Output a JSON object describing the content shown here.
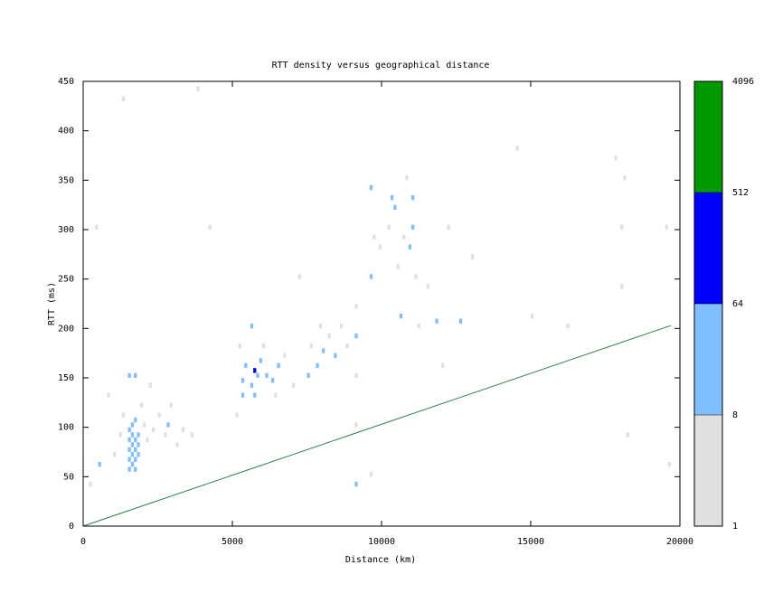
{
  "chart_data": {
    "type": "heatmap",
    "title": "RTT density versus geographical distance",
    "x_label": "Distance (km)",
    "y_label": "RTT (ms)",
    "xlim": [
      0,
      20000
    ],
    "xticks": [
      0,
      5000,
      10000,
      15000,
      20000
    ],
    "ylim": [
      0,
      450
    ],
    "yticks": [
      0,
      50,
      100,
      150,
      200,
      250,
      300,
      350,
      400,
      450
    ],
    "cells": {
      "x": [
        1500,
        1500,
        1500,
        1500,
        1500,
        1600,
        1600,
        1600,
        1600,
        1600,
        1700,
        1700,
        1700,
        1700,
        1700,
        1800,
        1800,
        1800,
        1500,
        1700,
        1200,
        1300,
        1900,
        2000,
        2100,
        2300,
        2500,
        2700,
        2800,
        2900,
        3100,
        3300,
        3600,
        2200,
        1000,
        800,
        500,
        400,
        200,
        5300,
        5300,
        5400,
        5600,
        5700,
        5700,
        5800,
        5900,
        6100,
        6300,
        6500,
        6400,
        5600,
        5200,
        6000,
        6700,
        5100,
        7500,
        7600,
        7800,
        7900,
        8000,
        8200,
        8400,
        8600,
        8800,
        9100,
        9100,
        9100,
        9100,
        9100,
        7000,
        7200,
        9600,
        9600,
        9700,
        9900,
        10200,
        10300,
        10400,
        10500,
        10600,
        10700,
        10900,
        11000,
        11000,
        11100,
        10800,
        11200,
        11800,
        12600,
        12000,
        11500,
        12200,
        13000,
        14500,
        15000,
        16200,
        18000,
        18000,
        18100,
        17800,
        18200,
        19500,
        19600,
        3800,
        1300,
        9600,
        4200
      ],
      "y": [
        55,
        65,
        75,
        85,
        95,
        60,
        70,
        80,
        90,
        100,
        55,
        65,
        75,
        85,
        105,
        70,
        80,
        90,
        150,
        150,
        90,
        110,
        120,
        100,
        85,
        95,
        110,
        90,
        100,
        120,
        80,
        95,
        90,
        140,
        70,
        130,
        60,
        300,
        40,
        130,
        145,
        160,
        140,
        155,
        130,
        150,
        165,
        150,
        145,
        160,
        130,
        200,
        180,
        180,
        170,
        110,
        150,
        180,
        160,
        200,
        175,
        190,
        170,
        200,
        180,
        190,
        150,
        40,
        100,
        220,
        140,
        250,
        250,
        340,
        290,
        280,
        300,
        330,
        320,
        260,
        210,
        290,
        280,
        300,
        330,
        250,
        350,
        200,
        205,
        205,
        160,
        240,
        300,
        270,
        380,
        210,
        200,
        240,
        300,
        350,
        370,
        90,
        300,
        60,
        440,
        430,
        50,
        300
      ],
      "values": [
        12,
        20,
        25,
        30,
        15,
        18,
        30,
        40,
        22,
        14,
        16,
        22,
        35,
        28,
        10,
        14,
        18,
        12,
        10,
        10,
        3,
        4,
        3,
        5,
        4,
        5,
        3,
        6,
        9,
        4,
        3,
        2,
        2,
        2,
        2,
        1,
        9,
        1,
        2,
        9,
        12,
        10,
        15,
        200,
        20,
        30,
        12,
        18,
        14,
        10,
        5,
        10,
        3,
        4,
        3,
        2,
        9,
        4,
        10,
        5,
        12,
        6,
        10,
        4,
        3,
        12,
        4,
        10,
        3,
        3,
        2,
        1,
        10,
        9,
        5,
        4,
        6,
        12,
        10,
        4,
        9,
        5,
        18,
        25,
        12,
        5,
        3,
        2,
        9,
        9,
        2,
        2,
        1,
        1,
        1,
        1,
        1,
        2,
        3,
        2,
        1,
        1,
        1,
        1,
        1,
        1,
        1,
        1
      ]
    },
    "line": {
      "color": "#2e7d4f",
      "x": [
        0,
        19700
      ],
      "y": [
        0,
        203
      ]
    },
    "colorbar": {
      "ticks": [
        1,
        8,
        64,
        512,
        4096
      ],
      "colors": [
        "#e0e0e0",
        "#80bfff",
        "#0000ff",
        "#009900"
      ]
    }
  }
}
